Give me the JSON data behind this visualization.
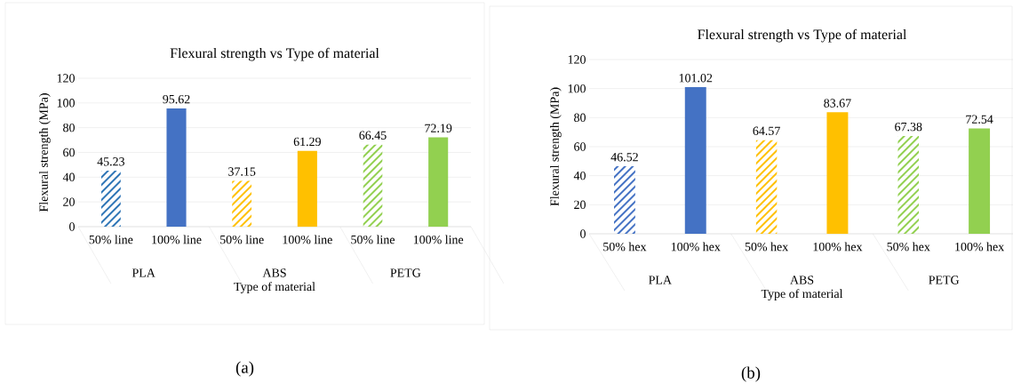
{
  "chart_data": [
    {
      "type": "bar",
      "title": "Flexural  strength vs Type of material",
      "xlabel": "Type of material",
      "ylabel": "Flexural strength (MPa)",
      "categories": [
        "50% line",
        "100% line",
        "50% line",
        "100% line",
        "50% line",
        "100% line"
      ],
      "values": [
        45.23,
        95.62,
        37.15,
        61.29,
        66.45,
        72.19
      ],
      "colors": [
        "#2e75b6",
        "#4472c4",
        "#ffc000",
        "#ffc000",
        "#92d050",
        "#92d050"
      ],
      "ylim": [
        0,
        120
      ],
      "yticks": [
        0,
        20,
        40,
        60,
        80,
        100,
        120
      ],
      "grid": "y",
      "data_labels": true,
      "annotations": [
        "PLA",
        "ABS",
        "PETG",
        "(a)"
      ]
    },
    {
      "type": "bar",
      "title": "Flexural  strength vs Type of material",
      "xlabel": "Type of material",
      "ylabel": "Flexural strength (MPa)",
      "categories": [
        "50% hex",
        "100% hex",
        "50% hex",
        "100% hex",
        "50% hex",
        "100% hex"
      ],
      "values": [
        46.52,
        101.02,
        64.57,
        83.67,
        67.38,
        72.54
      ],
      "colors": [
        "#4472c4",
        "#4472c4",
        "#ffc000",
        "#ffc000",
        "#92d050",
        "#92d050"
      ],
      "ylim": [
        0,
        120
      ],
      "yticks": [
        0,
        20,
        40,
        60,
        80,
        100,
        120
      ],
      "grid": "y",
      "data_labels": true,
      "annotations": [
        "PLA",
        "ABS",
        "PETG",
        "(b)"
      ]
    }
  ]
}
